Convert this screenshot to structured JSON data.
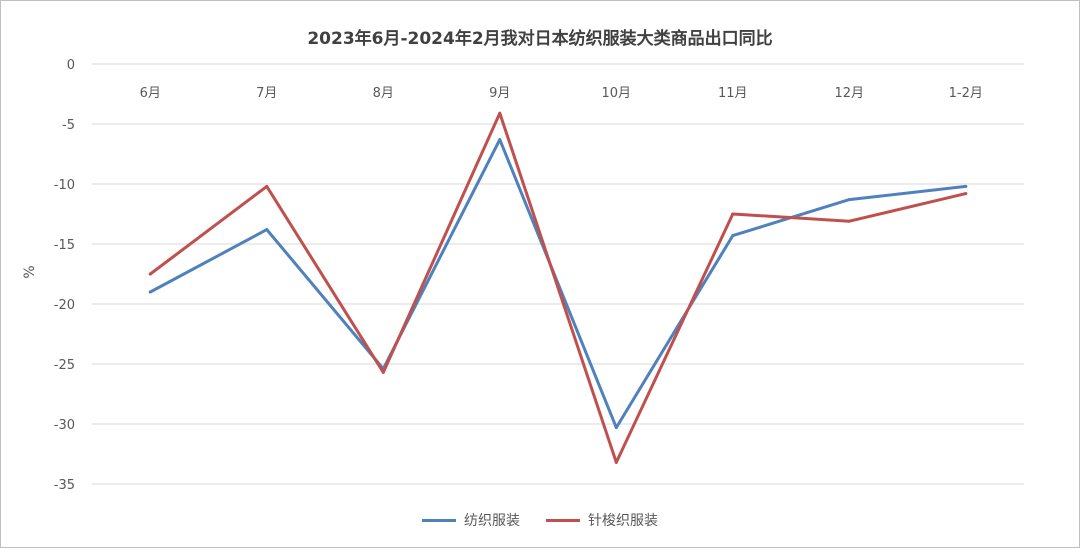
{
  "chart_data": {
    "type": "line",
    "title": "2023年6月-2024年2月我对日本纺织服装大类商品出口同比",
    "ylabel": "%",
    "xlabel": "",
    "categories": [
      "6月",
      "7月",
      "8月",
      "9月",
      "10月",
      "11月",
      "12月",
      "1-2月"
    ],
    "ylim": [
      -35,
      0
    ],
    "yticks": [
      0,
      -5,
      -10,
      -15,
      -20,
      -25,
      -30,
      -35
    ],
    "grid": true,
    "legend": "bottom",
    "series": [
      {
        "name": "纺织服装",
        "color": "#4f81bd",
        "values": [
          -19.0,
          -13.8,
          -25.4,
          -6.3,
          -30.3,
          -14.3,
          -11.3,
          -10.2
        ]
      },
      {
        "name": "针梭织服装",
        "color": "#c0504d",
        "values": [
          -17.5,
          -10.2,
          -25.7,
          -4.1,
          -33.2,
          -12.5,
          -13.1,
          -10.8
        ]
      }
    ]
  }
}
